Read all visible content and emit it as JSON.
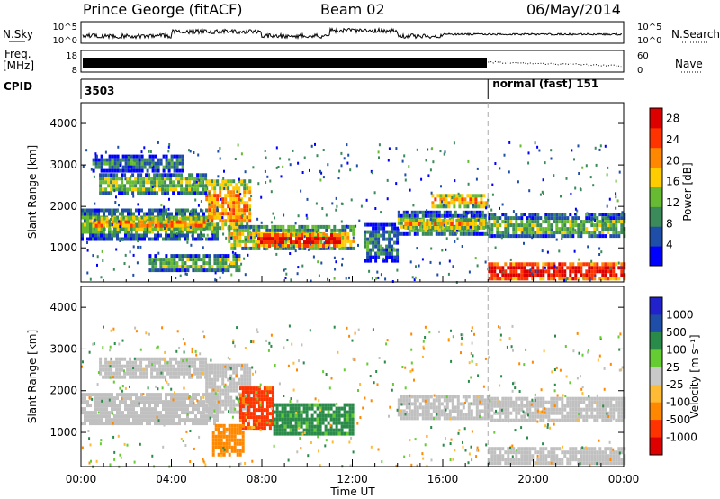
{
  "header": {
    "radar": "Prince George (fitACF)",
    "beam": "Beam 02",
    "date": "06/May/2014"
  },
  "noise_panel": {
    "left_label": "N.Sky",
    "right_label": "N.Search",
    "left_ticks": [
      "10^5",
      "10^0"
    ],
    "right_ticks": [
      "10^5",
      "10^0"
    ]
  },
  "freq_panel": {
    "left_label_1": "Freq.",
    "left_label_2": "[MHz]",
    "right_label": "Nave",
    "left_ticks": [
      "18",
      "8"
    ],
    "right_ticks": [
      "60",
      "0"
    ]
  },
  "cpid": {
    "label": "CPID",
    "first_id": "3503",
    "second_label": "normal (fast) 151",
    "switch_time_hours": 18
  },
  "x_axis": {
    "label": "Time UT",
    "ticks": [
      "00:00",
      "04:00",
      "08:00",
      "12:00",
      "16:00",
      "20:00",
      "00:00"
    ],
    "tick_hours": [
      0,
      4,
      8,
      12,
      16,
      20,
      24
    ]
  },
  "colors": {
    "power": [
      "#0000ff",
      "#1f4ea8",
      "#3a8a5a",
      "#66bb33",
      "#ffcc00",
      "#ff8800",
      "#ff3300",
      "#dd0000"
    ],
    "velocity": [
      "#dd0000",
      "#ff3300",
      "#ff8800",
      "#ffbb33",
      "#c8c8c8",
      "#66cc33",
      "#2a8a4a",
      "#1f4ea8",
      "#2222cc"
    ],
    "noise": "#000000",
    "ground": "#c0c0c0"
  },
  "chart_data": [
    {
      "type": "heatmap",
      "name": "power",
      "x_unit": "hours UT",
      "ylabel": "Slant Range [km]",
      "ylim": [
        180,
        4500
      ],
      "yticks": [
        1000,
        2000,
        3000,
        4000
      ],
      "colorbar_label": "Power [dB]",
      "colorbar_ticks": [
        4,
        8,
        12,
        16,
        20,
        24,
        28
      ],
      "colorbar_range": [
        0,
        30
      ],
      "bands": [
        {
          "t0": 0.0,
          "t1": 6.0,
          "r0": 1250,
          "r1": 1950,
          "value": 12
        },
        {
          "t0": 0.5,
          "t1": 5.5,
          "r0": 1450,
          "r1": 1750,
          "value": 20
        },
        {
          "t0": 5.5,
          "t1": 7.5,
          "r0": 1450,
          "r1": 2650,
          "value": 20
        },
        {
          "t0": 6.5,
          "t1": 12.0,
          "r0": 950,
          "r1": 1550,
          "value": 16
        },
        {
          "t0": 7.8,
          "t1": 11.5,
          "r0": 1050,
          "r1": 1350,
          "value": 28
        },
        {
          "t0": 0.8,
          "t1": 5.5,
          "r0": 2300,
          "r1": 2800,
          "value": 12
        },
        {
          "t0": 0.5,
          "t1": 4.5,
          "r0": 2900,
          "r1": 3250,
          "value": 8
        },
        {
          "t0": 3.0,
          "t1": 7.0,
          "r0": 500,
          "r1": 850,
          "value": 12
        },
        {
          "t0": 14.0,
          "t1": 18.0,
          "r0": 1300,
          "r1": 1900,
          "value": 12
        },
        {
          "t0": 14.3,
          "t1": 17.8,
          "r0": 1500,
          "r1": 1700,
          "value": 20
        },
        {
          "t0": 15.5,
          "t1": 18.0,
          "r0": 2000,
          "r1": 2300,
          "value": 20
        },
        {
          "t0": 18.0,
          "t1": 24.0,
          "r0": 1250,
          "r1": 1850,
          "value": 12
        },
        {
          "t0": 18.0,
          "t1": 24.0,
          "r0": 300,
          "r1": 650,
          "value": 28
        },
        {
          "t0": 12.5,
          "t1": 14.0,
          "r0": 700,
          "r1": 1600,
          "value": 8
        }
      ]
    },
    {
      "type": "heatmap",
      "name": "velocity",
      "x_unit": "hours UT",
      "ylabel": "Slant Range [km]",
      "ylim": [
        180,
        4500
      ],
      "yticks": [
        1000,
        2000,
        3000,
        4000
      ],
      "colorbar_label": "Velocity [m s⁻¹]",
      "colorbar_ticks": [
        1000,
        500,
        100,
        25,
        -25,
        -100,
        -500,
        -1000
      ],
      "bands": [
        {
          "t0": 0.0,
          "t1": 6.0,
          "r0": 1250,
          "r1": 1950,
          "value": 0
        },
        {
          "t0": 5.5,
          "t1": 7.5,
          "r0": 1450,
          "r1": 2650,
          "value": 0
        },
        {
          "t0": 0.8,
          "t1": 5.5,
          "r0": 2300,
          "r1": 2800,
          "value": 0
        },
        {
          "t0": 14.0,
          "t1": 18.0,
          "r0": 1300,
          "r1": 1900,
          "value": 0
        },
        {
          "t0": 18.0,
          "t1": 24.0,
          "r0": 1250,
          "r1": 1850,
          "value": 0
        },
        {
          "t0": 18.0,
          "t1": 24.0,
          "r0": 300,
          "r1": 650,
          "value": 0
        },
        {
          "t0": 8.5,
          "t1": 12.0,
          "r0": 1000,
          "r1": 1700,
          "value": 200
        },
        {
          "t0": 7.0,
          "t1": 8.5,
          "r0": 1100,
          "r1": 2100,
          "value": -600
        },
        {
          "t0": 5.8,
          "t1": 7.2,
          "r0": 500,
          "r1": 1200,
          "value": -300
        }
      ]
    }
  ]
}
